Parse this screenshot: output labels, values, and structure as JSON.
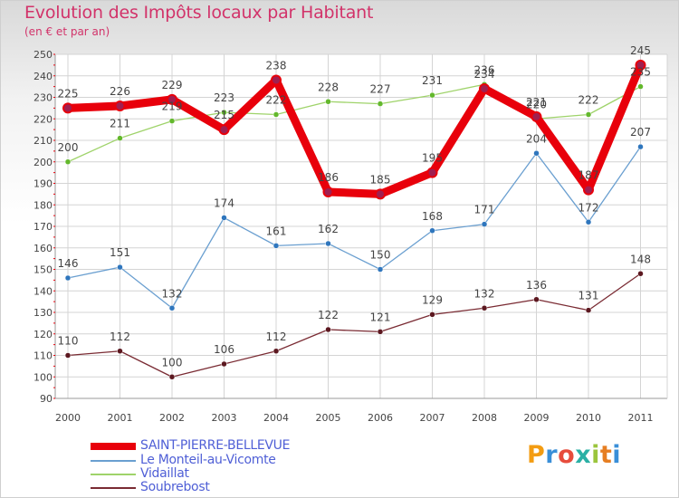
{
  "title": "Evolution des Impôts locaux par Habitant",
  "subtitle": "(en € et par an)",
  "brand": {
    "text": "Proxiti",
    "colors": [
      "#f39c12",
      "#3a8fd8",
      "#e74c3c",
      "#2bb0a5",
      "#9bc53d",
      "#e67e22",
      "#3a8fd8"
    ]
  },
  "chart_data": {
    "type": "line",
    "title": "Evolution des Impôts locaux par Habitant",
    "subtitle": "(en € et par an)",
    "x": [
      "2000",
      "2001",
      "2002",
      "2003",
      "2004",
      "2005",
      "2006",
      "2007",
      "2008",
      "2009",
      "2010",
      "2011"
    ],
    "ylim": [
      90,
      250
    ],
    "yticks": [
      90,
      100,
      110,
      120,
      130,
      140,
      150,
      160,
      170,
      180,
      190,
      200,
      210,
      220,
      230,
      240,
      250
    ],
    "grid": true,
    "legend_position": "bottom-left",
    "series": [
      {
        "name": "SAINT-PIERRE-BELLEVUE",
        "color": "#e8000b",
        "marker": "#a01f50",
        "emphasis": true,
        "values": [
          225,
          226,
          229,
          215,
          238,
          186,
          185,
          195,
          234,
          221,
          187,
          245
        ]
      },
      {
        "name": "Le Monteil-au-Vicomte",
        "color": "#6a9fd0",
        "marker": "#2f76bd",
        "emphasis": false,
        "values": [
          146,
          151,
          132,
          174,
          161,
          162,
          150,
          168,
          171,
          204,
          172,
          207
        ]
      },
      {
        "name": "Vidaillat",
        "color": "#9fd36a",
        "marker": "#63b82c",
        "emphasis": false,
        "values": [
          200,
          211,
          219,
          223,
          222,
          228,
          227,
          231,
          236,
          220,
          222,
          235
        ]
      },
      {
        "name": "Soubrebost",
        "color": "#7a2b33",
        "marker": "#5c1820",
        "emphasis": false,
        "values": [
          110,
          112,
          100,
          106,
          112,
          122,
          121,
          129,
          132,
          136,
          131,
          148
        ]
      }
    ]
  }
}
